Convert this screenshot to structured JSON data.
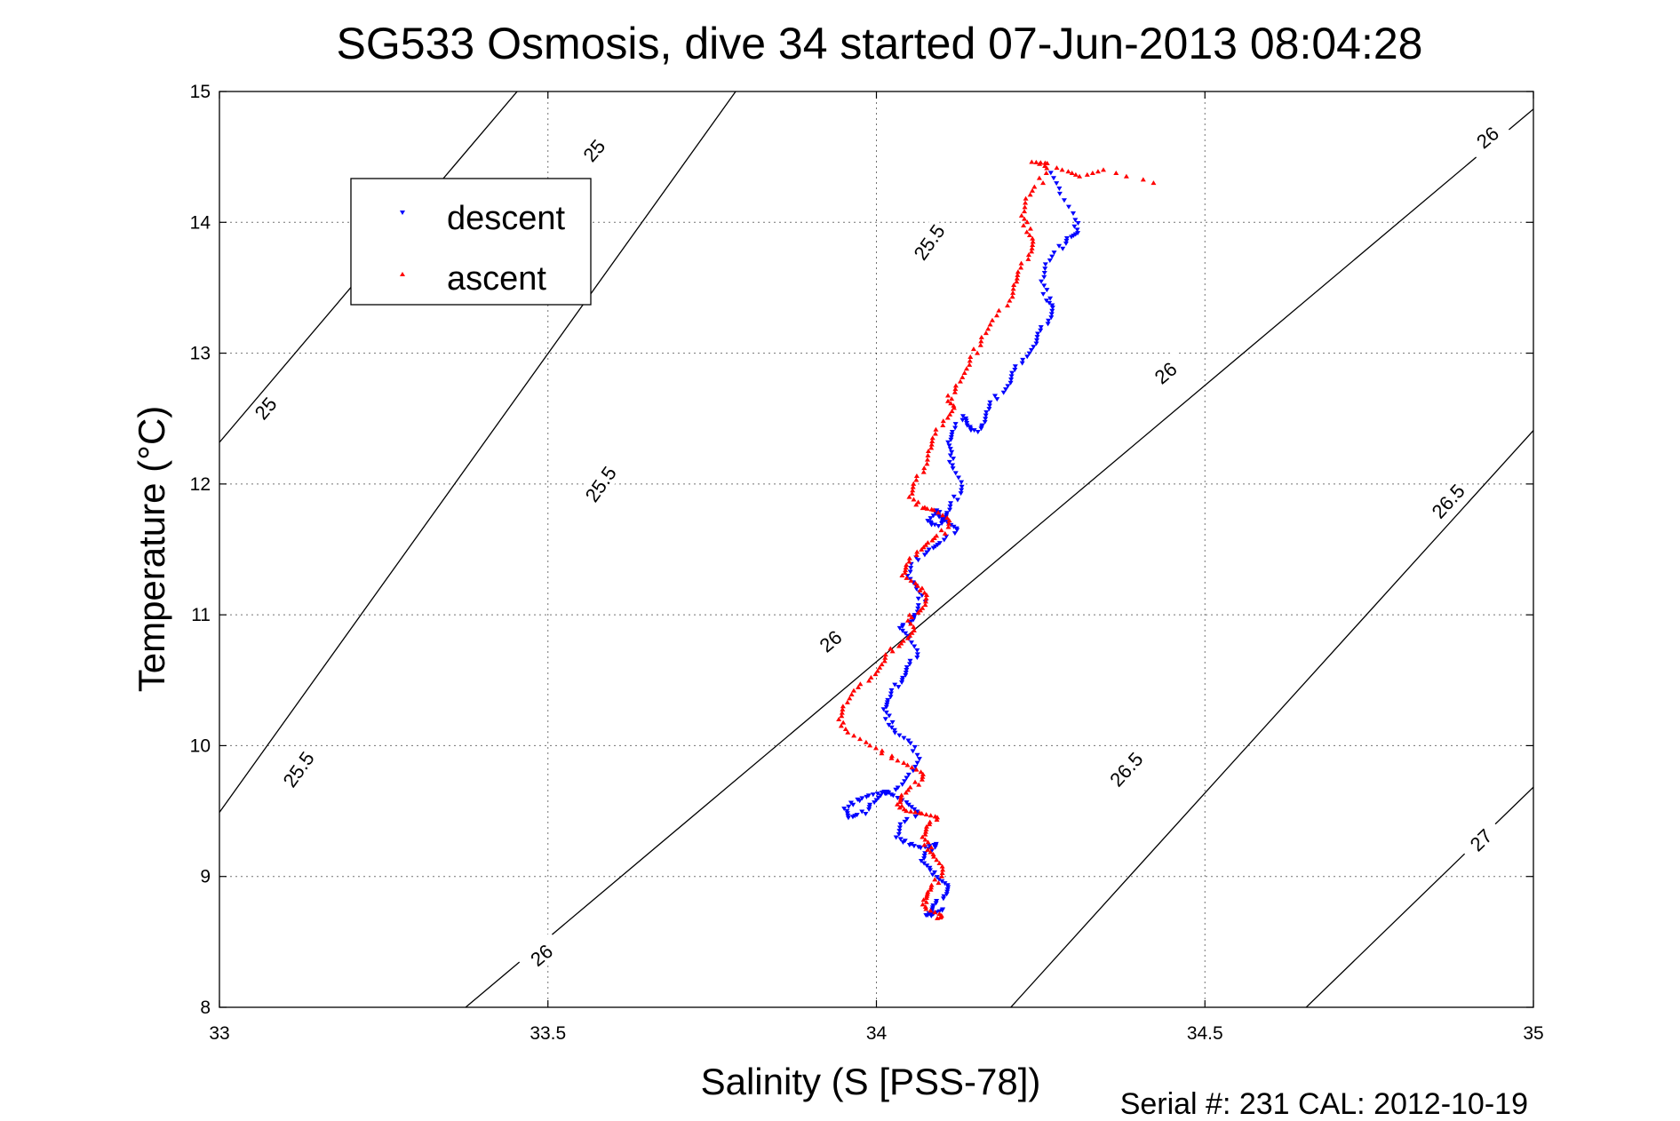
{
  "chart_data": {
    "type": "scatter",
    "title": "SG533 Osmosis, dive 34 started 07-Jun-2013 08:04:28",
    "xlabel": "Salinity (S [PSS-78])",
    "ylabel": "Temperature (°C)",
    "xlim": [
      33,
      35
    ],
    "ylim": [
      8,
      15
    ],
    "xticks": [
      "33",
      "33.5",
      "34",
      "34.5",
      "35"
    ],
    "yticks": [
      "8",
      "9",
      "10",
      "11",
      "12",
      "13",
      "14",
      "15"
    ],
    "grid": true,
    "legend_position": "top-left",
    "footer": "Serial #: 231  CAL: 2012-10-19",
    "density_contours": [
      {
        "sigma": 25,
        "labels": [
          "25",
          "25"
        ]
      },
      {
        "sigma": 25.5,
        "labels": [
          "25.5",
          "25.5",
          "25.5"
        ]
      },
      {
        "sigma": 26,
        "labels": [
          "26",
          "26",
          "26",
          "26"
        ]
      },
      {
        "sigma": 26.5,
        "labels": [
          "26.5",
          "26.5"
        ]
      },
      {
        "sigma": 27,
        "labels": [
          "27"
        ]
      }
    ],
    "series": [
      {
        "name": "descent",
        "color": "#0000ff",
        "marker": "triangle-down",
        "x": [
          34.27,
          34.28,
          34.3,
          34.31,
          34.29,
          34.28,
          34.26,
          34.25,
          34.26,
          34.27,
          34.26,
          34.25,
          34.24,
          34.22,
          34.21,
          34.2,
          34.18,
          34.17,
          34.16,
          34.15,
          34.14,
          34.13,
          34.12,
          34.11,
          34.11,
          34.12,
          34.13,
          34.12,
          34.11,
          34.1,
          34.09,
          34.08,
          34.09,
          34.1,
          34.11,
          34.12,
          34.1,
          34.08,
          34.06,
          34.05,
          34.06,
          34.07,
          34.06,
          34.05,
          34.04,
          34.05,
          34.06,
          34.05,
          34.04,
          34.03,
          34.02,
          34.01,
          34.02,
          34.03,
          34.05,
          34.07,
          34.05,
          34.03,
          34.01,
          33.99,
          33.98,
          33.96,
          33.95,
          33.97,
          33.99,
          34.01,
          34.03,
          34.05,
          34.06,
          34.04,
          34.03,
          34.05,
          34.07,
          34.09,
          34.08,
          34.07,
          34.08,
          34.1,
          34.11,
          34.1,
          34.09,
          34.08,
          34.08,
          34.09,
          34.1
        ],
        "y": [
          14.38,
          14.22,
          14.02,
          13.92,
          13.88,
          13.8,
          13.68,
          13.55,
          13.42,
          13.35,
          13.25,
          13.15,
          13.05,
          12.95,
          12.85,
          12.75,
          12.65,
          12.55,
          12.45,
          12.4,
          12.45,
          12.52,
          12.4,
          12.32,
          12.22,
          12.12,
          11.98,
          11.88,
          11.78,
          11.72,
          11.68,
          11.72,
          11.8,
          11.75,
          11.7,
          11.65,
          11.55,
          11.5,
          11.42,
          11.3,
          11.2,
          11.1,
          11.0,
          10.95,
          10.9,
          10.82,
          10.7,
          10.6,
          10.52,
          10.45,
          10.35,
          10.28,
          10.18,
          10.1,
          10.02,
          9.9,
          9.78,
          9.68,
          9.62,
          9.55,
          9.48,
          9.45,
          9.52,
          9.58,
          9.62,
          9.65,
          9.62,
          9.55,
          9.48,
          9.4,
          9.3,
          9.25,
          9.22,
          9.25,
          9.2,
          9.12,
          9.05,
          8.98,
          8.92,
          8.85,
          8.78,
          8.72,
          8.7,
          8.72,
          8.75
        ]
      },
      {
        "name": "ascent",
        "color": "#ff0000",
        "marker": "triangle-up",
        "x": [
          34.42,
          34.35,
          34.31,
          34.28,
          34.24,
          34.26,
          34.25,
          34.23,
          34.22,
          34.23,
          34.24,
          34.23,
          34.22,
          34.21,
          34.2,
          34.18,
          34.16,
          34.15,
          34.14,
          34.12,
          34.11,
          34.12,
          34.1,
          34.09,
          34.08,
          34.07,
          34.06,
          34.05,
          34.07,
          34.09,
          34.11,
          34.1,
          34.08,
          34.06,
          34.05,
          34.04,
          34.06,
          34.08,
          34.07,
          34.05,
          34.06,
          34.04,
          34.02,
          34.01,
          33.99,
          33.97,
          33.95,
          33.94,
          33.96,
          33.99,
          34.02,
          34.05,
          34.07,
          34.06,
          34.04,
          34.03,
          34.05,
          34.07,
          34.09,
          34.08,
          34.07,
          34.08,
          34.09,
          34.1,
          34.09,
          34.08,
          34.07,
          34.08,
          34.1,
          34.09
        ],
        "y": [
          14.3,
          14.4,
          14.35,
          14.4,
          14.46,
          14.45,
          14.3,
          14.18,
          14.05,
          13.95,
          13.85,
          13.75,
          13.62,
          13.52,
          13.4,
          13.25,
          13.12,
          13.0,
          12.88,
          12.75,
          12.65,
          12.58,
          12.48,
          12.35,
          12.25,
          12.12,
          12.0,
          11.9,
          11.82,
          11.8,
          11.72,
          11.62,
          11.55,
          11.48,
          11.38,
          11.3,
          11.22,
          11.15,
          11.05,
          10.98,
          10.88,
          10.8,
          10.72,
          10.62,
          10.52,
          10.42,
          10.3,
          10.2,
          10.1,
          10.0,
          9.92,
          9.85,
          9.78,
          9.7,
          9.62,
          9.55,
          9.5,
          9.48,
          9.45,
          9.38,
          9.3,
          9.22,
          9.15,
          9.05,
          8.95,
          8.88,
          8.82,
          8.75,
          8.7,
          8.68
        ]
      }
    ]
  }
}
